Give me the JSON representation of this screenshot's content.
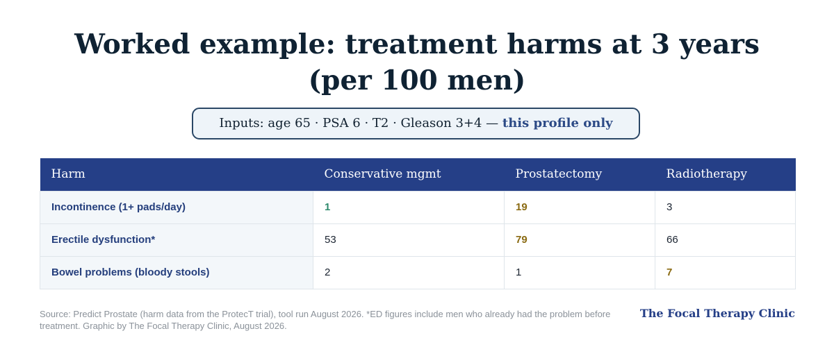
{
  "title": "Worked example: treatment harms at 3 years (per 100 men)",
  "inputs": {
    "prefix": "Inputs: age 65 · PSA 6 · T2 · Gleason 3+4 — ",
    "emphasis": "this profile only"
  },
  "table": {
    "headers": [
      "Harm",
      "Conservative mgmt",
      "Prostatectomy",
      "Radiotherapy"
    ],
    "rows": [
      {
        "harm": "Incontinence (1+ pads/day)",
        "values": [
          "1",
          "19",
          "3"
        ]
      },
      {
        "harm": "Erectile dysfunction*",
        "values": [
          "53",
          "79",
          "66"
        ]
      },
      {
        "harm": "Bowel problems (bloody stools)",
        "values": [
          "2",
          "1",
          "7"
        ]
      }
    ]
  },
  "colors": {
    "header_bg": "#253f87",
    "lowest_value": "#2e8a6c",
    "highest_value": "#8a6a12"
  },
  "source": "Source: Predict Prostate (harm data from the ProtecT trial), tool run August 2026. *ED figures include men who already had the problem before treatment. Graphic by The Focal Therapy Clinic, August 2026.",
  "brand": "The Focal Therapy Clinic"
}
